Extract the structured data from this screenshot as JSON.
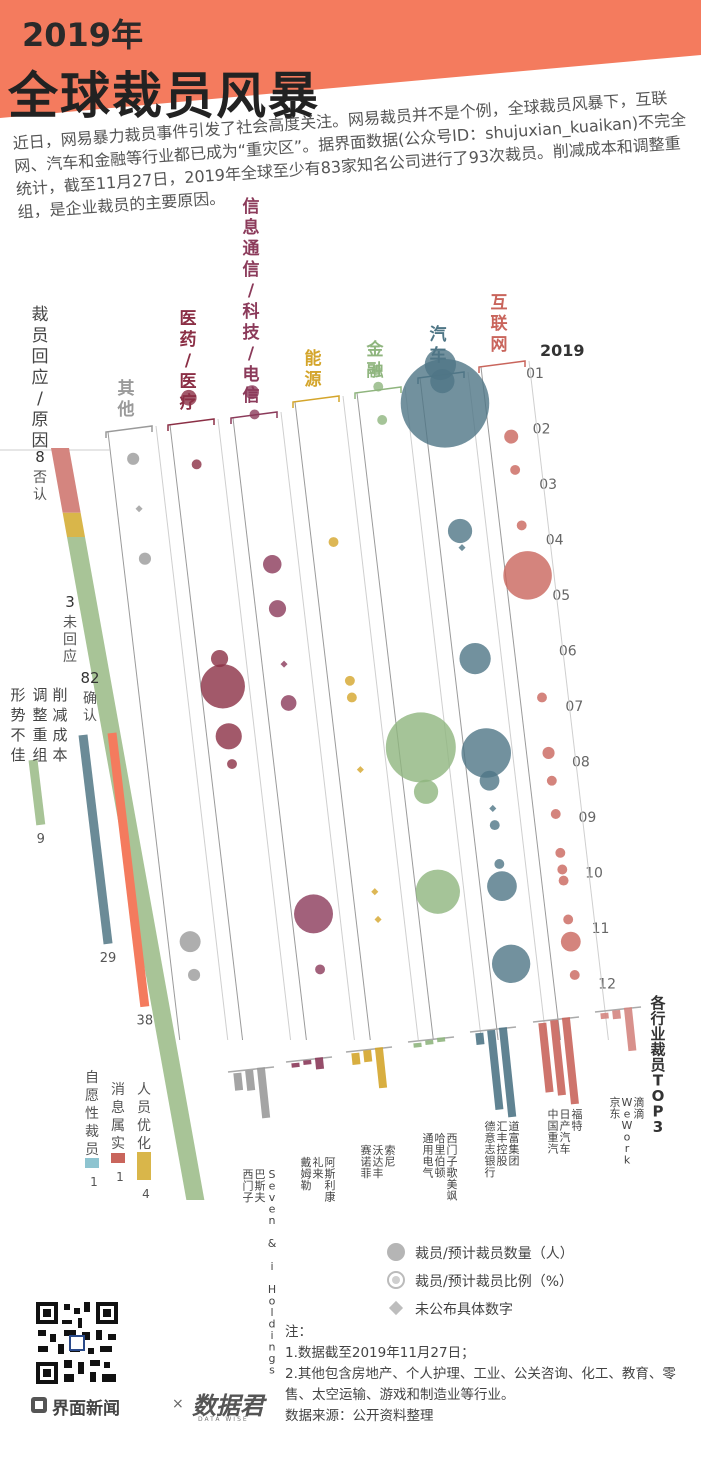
{
  "header": {
    "year_title": "2019年",
    "main_title": "全球裁员风暴",
    "intro": "近日，网易暴力裁员事件引发了社会高度关注。网易裁员并不是个例，全球裁员风暴下，互联网、汽车和金融等行业都已成为“重灾区”。据界面数据(公众号ID：shujuxian_kuaikan)不完全统计，截至11月27日，2019年全球至少有83家知名公司进行了93次裁员。削减成本和调整重组，是企业裁员的主要原因。"
  },
  "colors": {
    "header_band": "#f47b5e",
    "other": "#9a9a9a",
    "medical": "#8b2f45",
    "telecom": "#8b3a5a",
    "energy": "#d4a52b",
    "finance": "#8fb57e",
    "auto": "#4f7686",
    "internet": "#c9655c",
    "deny": "#d4857f",
    "noreply": "#d9b64a",
    "confirm": "#a8c497"
  },
  "chart_data": {
    "type": "bubble-timeline",
    "year_label": "2019",
    "months": [
      "01",
      "02",
      "03",
      "04",
      "05",
      "06",
      "07",
      "08",
      "09",
      "10",
      "11",
      "12"
    ],
    "industries": [
      {
        "key": "other",
        "name": "其他"
      },
      {
        "key": "medical",
        "name": "医药/医疗"
      },
      {
        "key": "telecom",
        "name": "信息通信/科技/电信"
      },
      {
        "key": "energy",
        "name": "能源"
      },
      {
        "key": "finance",
        "name": "金融"
      },
      {
        "key": "auto",
        "name": "汽车"
      },
      {
        "key": "internet",
        "name": "互联网"
      }
    ],
    "events": [
      {
        "ind": "other",
        "m": 2.6,
        "v": 3
      },
      {
        "ind": "other",
        "m": 3.5,
        "v": 1
      },
      {
        "ind": "other",
        "m": 4.4,
        "v": 3
      },
      {
        "ind": "other",
        "m": 11.3,
        "v": 9
      },
      {
        "ind": "other",
        "m": 11.9,
        "v": 3
      },
      {
        "ind": "medical",
        "m": 1.5,
        "v": 5
      },
      {
        "ind": "medical",
        "m": 2.7,
        "v": 2
      },
      {
        "ind": "medical",
        "m": 6.2,
        "v": 6
      },
      {
        "ind": "medical",
        "m": 6.7,
        "v": 40
      },
      {
        "ind": "medical",
        "m": 7.6,
        "v": 14
      },
      {
        "ind": "medical",
        "m": 8.1,
        "v": 2
      },
      {
        "ind": "telecom",
        "m": 1.4,
        "v": 4
      },
      {
        "ind": "telecom",
        "m": 1.8,
        "v": 2
      },
      {
        "ind": "telecom",
        "m": 4.5,
        "v": 7
      },
      {
        "ind": "telecom",
        "m": 5.3,
        "v": 6
      },
      {
        "ind": "telecom",
        "m": 6.3,
        "v": 1
      },
      {
        "ind": "telecom",
        "m": 7.0,
        "v": 5
      },
      {
        "ind": "telecom",
        "m": 10.8,
        "v": 31
      },
      {
        "ind": "telecom",
        "m": 11.8,
        "v": 2
      },
      {
        "ind": "energy",
        "m": 4.1,
        "v": 2
      },
      {
        "ind": "energy",
        "m": 6.6,
        "v": 2
      },
      {
        "ind": "energy",
        "m": 6.9,
        "v": 2
      },
      {
        "ind": "energy",
        "m": 8.2,
        "v": 1
      },
      {
        "ind": "energy",
        "m": 10.4,
        "v": 1
      },
      {
        "ind": "energy",
        "m": 10.9,
        "v": 1
      },
      {
        "ind": "finance",
        "m": 1.0,
        "v": 2
      },
      {
        "ind": "finance",
        "m": 1.3,
        "v": 2
      },
      {
        "ind": "finance",
        "m": 1.9,
        "v": 2
      },
      {
        "ind": "finance",
        "m": 7.8,
        "v": 100
      },
      {
        "ind": "finance",
        "m": 8.6,
        "v": 12
      },
      {
        "ind": "finance",
        "m": 10.4,
        "v": 40
      },
      {
        "ind": "auto",
        "m": 0.9,
        "v": 20
      },
      {
        "ind": "auto",
        "m": 1.2,
        "v": 12
      },
      {
        "ind": "auto",
        "m": 1.6,
        "v": 160
      },
      {
        "ind": "auto",
        "m": 3.9,
        "v": 12
      },
      {
        "ind": "auto",
        "m": 4.2,
        "v": 1
      },
      {
        "ind": "auto",
        "m": 6.2,
        "v": 20
      },
      {
        "ind": "auto",
        "m": 7.9,
        "v": 50
      },
      {
        "ind": "auto",
        "m": 8.4,
        "v": 8
      },
      {
        "ind": "auto",
        "m": 8.9,
        "v": 1
      },
      {
        "ind": "auto",
        "m": 9.2,
        "v": 2
      },
      {
        "ind": "auto",
        "m": 9.9,
        "v": 2
      },
      {
        "ind": "auto",
        "m": 10.3,
        "v": 18
      },
      {
        "ind": "auto",
        "m": 11.7,
        "v": 30
      },
      {
        "ind": "internet",
        "m": 2.2,
        "v": 4
      },
      {
        "ind": "internet",
        "m": 2.8,
        "v": 2
      },
      {
        "ind": "internet",
        "m": 3.8,
        "v": 2
      },
      {
        "ind": "internet",
        "m": 4.7,
        "v": 48
      },
      {
        "ind": "internet",
        "m": 6.9,
        "v": 2
      },
      {
        "ind": "internet",
        "m": 7.9,
        "v": 3
      },
      {
        "ind": "internet",
        "m": 8.4,
        "v": 2
      },
      {
        "ind": "internet",
        "m": 9.0,
        "v": 2
      },
      {
        "ind": "internet",
        "m": 9.7,
        "v": 2
      },
      {
        "ind": "internet",
        "m": 10.0,
        "v": 2
      },
      {
        "ind": "internet",
        "m": 10.2,
        "v": 2
      },
      {
        "ind": "internet",
        "m": 10.9,
        "v": 2
      },
      {
        "ind": "internet",
        "m": 11.3,
        "v": 8
      },
      {
        "ind": "internet",
        "m": 11.9,
        "v": 2
      }
    ],
    "response": {
      "title": "裁员回应/原因",
      "segments": [
        {
          "count": "8",
          "label": "否认",
          "value": 8,
          "color": "#d4857f"
        },
        {
          "count": "3",
          "label": "未回应",
          "value": 3,
          "color": "#d9b64a"
        },
        {
          "count": "82",
          "label": "确认",
          "value": 82,
          "color": "#a8c497"
        }
      ]
    },
    "reasons": [
      {
        "label": "形势不佳",
        "value": 9,
        "color": "#a8c497"
      },
      {
        "label": "调整重组",
        "value": 29,
        "color": "#6b8b97"
      },
      {
        "label": "削减成本",
        "value": 38,
        "color": "#f47b5e"
      }
    ],
    "minor_reasons": [
      {
        "label": "自愿性裁员",
        "value": 1,
        "color": "#8ec4d0"
      },
      {
        "label": "消息属实",
        "value": 1,
        "color": "#c9655c"
      },
      {
        "label": "人员优化",
        "value": 4,
        "color": "#d9b64a"
      }
    ],
    "top3_title": "各行业裁员TOP3",
    "top3": [
      {
        "ind": "other",
        "names": [
          "西门子",
          "巴斯夫",
          "Seven & i Holdings"
        ],
        "bars": [
          12,
          14,
          35
        ]
      },
      {
        "ind": "telecom",
        "names": [
          "戴姆勒",
          "礼来",
          "阿斯利康"
        ],
        "bars": [
          3,
          3,
          8
        ]
      },
      {
        "ind": "energy",
        "names": [
          "赛诺菲",
          "沃达丰",
          "索尼"
        ],
        "bars": [
          8,
          8,
          28
        ]
      },
      {
        "ind": "finance",
        "names": [
          "通用电气",
          "哈里伯顿",
          "西门子歌美飒"
        ],
        "bars": [
          3,
          3,
          3
        ]
      },
      {
        "ind": "auto",
        "names": [
          "德意志银行",
          "汇丰控股",
          "道富集团"
        ],
        "bars": [
          8,
          55,
          62
        ]
      },
      {
        "ind": "internet",
        "names": [
          "中国重汽",
          "日产汽车",
          "福特"
        ],
        "bars": [
          48,
          52,
          60
        ]
      },
      {
        "ind": "deny",
        "names": [
          "京东",
          "WeWork",
          "滴滴"
        ],
        "bars": [
          4,
          6,
          30
        ]
      }
    ],
    "legend": [
      "裁员/预计裁员数量（人）",
      "裁员/预计裁员比例（%）",
      "未公布具体数字"
    ]
  },
  "notes": {
    "heading": "注：",
    "line1": "1.数据截至2019年11月27日；",
    "line2": "2.其他包含房地产、个人护理、工业、公关咨询、化工、教育、零售、太空运输、游戏和制造业等行业。",
    "source": "数据来源：公开资料整理"
  },
  "brand": {
    "name1": "界面新闻",
    "x": "×",
    "name2": "数据君",
    "name2_sub": "DATA WISE"
  }
}
